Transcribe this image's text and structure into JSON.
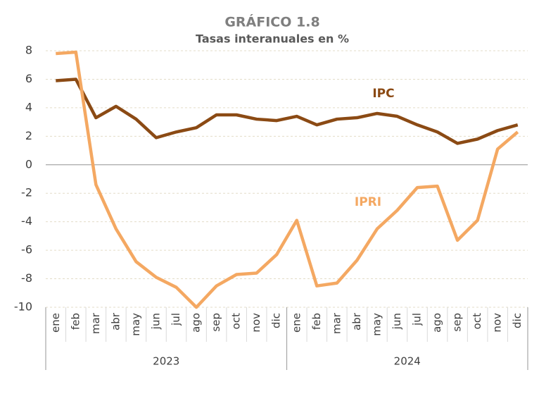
{
  "chart_data": {
    "type": "line",
    "title": "GRÁFICO 1.8",
    "subtitle": "Tasas interanuales en %",
    "categories": [
      "ene",
      "feb",
      "mar",
      "abr",
      "may",
      "jun",
      "jul",
      "ago",
      "sep",
      "oct",
      "nov",
      "dic",
      "ene",
      "feb",
      "mar",
      "abr",
      "may",
      "jun",
      "jul",
      "ago",
      "sep",
      "oct",
      "nov",
      "dic"
    ],
    "group_labels": [
      "2023",
      "2024"
    ],
    "series": [
      {
        "name": "IPC",
        "color": "#8b4a14",
        "values": [
          5.9,
          6.0,
          3.3,
          4.1,
          3.2,
          1.9,
          2.3,
          2.6,
          3.5,
          3.5,
          3.2,
          3.1,
          3.4,
          2.8,
          3.2,
          3.3,
          3.6,
          3.4,
          2.8,
          2.3,
          1.5,
          1.8,
          2.4,
          2.8
        ]
      },
      {
        "name": "IPRI",
        "color": "#f4a862",
        "values": [
          7.8,
          7.9,
          -1.4,
          -4.5,
          -6.8,
          -7.9,
          -8.6,
          -10.0,
          -8.5,
          -7.7,
          -7.6,
          -6.3,
          -3.9,
          -8.5,
          -8.3,
          -6.7,
          -4.5,
          -3.2,
          -1.6,
          -1.5,
          -5.3,
          -3.9,
          1.1,
          2.3
        ]
      }
    ],
    "ylim": [
      -10,
      8
    ],
    "yticks": [
      -10,
      -8,
      -6,
      -4,
      -2,
      0,
      2,
      4,
      6,
      8
    ],
    "grid": true
  }
}
